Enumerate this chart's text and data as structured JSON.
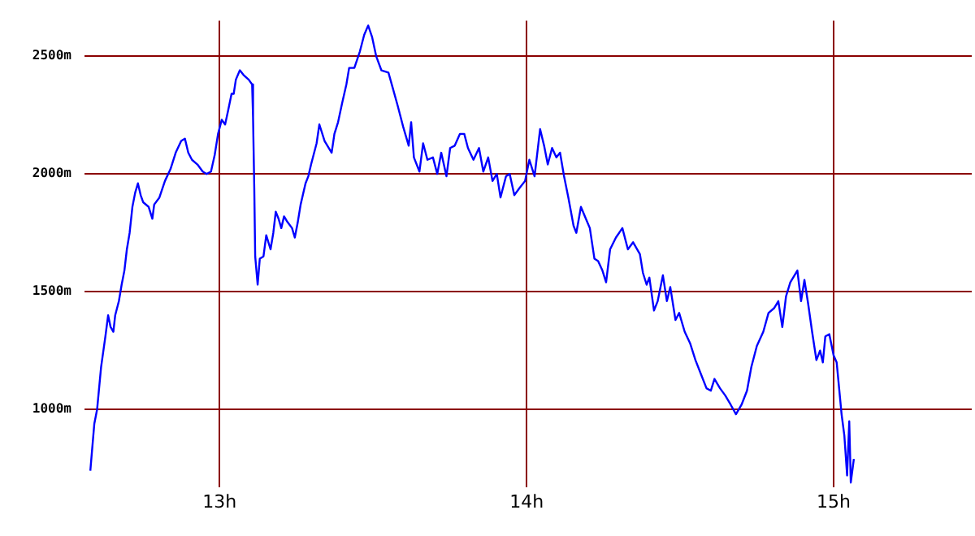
{
  "chart_data": {
    "type": "line",
    "grid": true,
    "marker": "none",
    "line_style": "solid",
    "xlim": [
      12.56,
      15.45
    ],
    "ylim": [
      670,
      2650
    ],
    "xticks": [
      {
        "value": 13,
        "label": "13h"
      },
      {
        "value": 14,
        "label": "14h"
      },
      {
        "value": 15,
        "label": "15h"
      }
    ],
    "yticks": [
      {
        "value": 1000,
        "label": "1000m"
      },
      {
        "value": 1500,
        "label": "1500m"
      },
      {
        "value": 2000,
        "label": "2000m"
      },
      {
        "value": 2500,
        "label": "2500m"
      }
    ],
    "series": [
      {
        "color": "#0000ff",
        "x": [
          12.579,
          12.592,
          12.601,
          12.614,
          12.628,
          12.637,
          12.645,
          12.654,
          12.66,
          12.672,
          12.681,
          12.69,
          12.698,
          12.707,
          12.716,
          12.725,
          12.734,
          12.743,
          12.751,
          12.769,
          12.781,
          12.787,
          12.804,
          12.822,
          12.84,
          12.857,
          12.875,
          12.887,
          12.898,
          12.91,
          12.928,
          12.945,
          12.958,
          12.972,
          12.984,
          12.995,
          13.007,
          13.018,
          13.028,
          13.039,
          13.046,
          13.053,
          13.066,
          13.078,
          13.095,
          13.106,
          13.109,
          13.113,
          13.116,
          13.124,
          13.131,
          13.143,
          13.152,
          13.166,
          13.175,
          13.183,
          13.192,
          13.201,
          13.21,
          13.219,
          13.236,
          13.245,
          13.254,
          13.264,
          13.28,
          13.289,
          13.298,
          13.316,
          13.325,
          13.342,
          13.365,
          13.374,
          13.386,
          13.399,
          13.413,
          13.422,
          13.439,
          13.457,
          13.471,
          13.484,
          13.497,
          13.51,
          13.527,
          13.55,
          13.563,
          13.58,
          13.598,
          13.616,
          13.624,
          13.633,
          13.651,
          13.663,
          13.677,
          13.695,
          13.709,
          13.722,
          13.739,
          13.751,
          13.766,
          13.783,
          13.797,
          13.809,
          13.827,
          13.845,
          13.859,
          13.875,
          13.889,
          13.903,
          13.915,
          13.933,
          13.945,
          13.96,
          13.977,
          13.995,
          14.009,
          14.026,
          14.044,
          14.057,
          14.069,
          14.083,
          14.097,
          14.109,
          14.122,
          14.136,
          14.153,
          14.162,
          14.177,
          14.193,
          14.206,
          14.221,
          14.233,
          14.247,
          14.259,
          14.272,
          14.291,
          14.312,
          14.33,
          14.347,
          14.369,
          14.379,
          14.391,
          14.4,
          14.415,
          14.427,
          14.444,
          14.457,
          14.468,
          14.485,
          14.497,
          14.515,
          14.533,
          14.55,
          14.568,
          14.586,
          14.6,
          14.612,
          14.63,
          14.647,
          14.665,
          14.682,
          14.7,
          14.718,
          14.732,
          14.75,
          14.771,
          14.788,
          14.806,
          14.82,
          14.833,
          14.845,
          14.859,
          14.873,
          14.882,
          14.894,
          14.905,
          14.917,
          14.93,
          14.944,
          14.956,
          14.965,
          14.973,
          14.986,
          15.0,
          15.01,
          15.018,
          15.026,
          15.035,
          15.044,
          15.051,
          15.056,
          15.066
        ],
        "values": [
          740,
          940,
          1000,
          1180,
          1310,
          1400,
          1350,
          1330,
          1400,
          1460,
          1530,
          1590,
          1680,
          1750,
          1860,
          1920,
          1960,
          1910,
          1880,
          1860,
          1810,
          1870,
          1900,
          1970,
          2020,
          2090,
          2140,
          2150,
          2090,
          2060,
          2040,
          2010,
          2000,
          2010,
          2080,
          2170,
          2230,
          2210,
          2270,
          2340,
          2340,
          2400,
          2440,
          2420,
          2400,
          2380,
          2240,
          1940,
          1650,
          1530,
          1640,
          1650,
          1740,
          1680,
          1750,
          1840,
          1810,
          1770,
          1820,
          1800,
          1770,
          1730,
          1790,
          1870,
          1960,
          1990,
          2040,
          2130,
          2210,
          2140,
          2090,
          2170,
          2220,
          2300,
          2380,
          2450,
          2450,
          2520,
          2590,
          2630,
          2580,
          2500,
          2440,
          2430,
          2370,
          2290,
          2200,
          2120,
          2220,
          2070,
          2010,
          2130,
          2060,
          2070,
          2000,
          2090,
          1990,
          2110,
          2120,
          2170,
          2170,
          2110,
          2060,
          2110,
          2010,
          2070,
          1970,
          2000,
          1900,
          1990,
          2000,
          1910,
          1940,
          1970,
          2060,
          1990,
          2190,
          2120,
          2040,
          2110,
          2070,
          2090,
          1990,
          1900,
          1780,
          1750,
          1860,
          1810,
          1770,
          1640,
          1630,
          1590,
          1540,
          1680,
          1730,
          1770,
          1680,
          1710,
          1660,
          1580,
          1530,
          1560,
          1420,
          1460,
          1570,
          1460,
          1520,
          1380,
          1410,
          1330,
          1280,
          1210,
          1150,
          1090,
          1080,
          1130,
          1090,
          1060,
          1020,
          980,
          1020,
          1080,
          1180,
          1270,
          1330,
          1410,
          1430,
          1460,
          1350,
          1480,
          1540,
          1570,
          1590,
          1460,
          1550,
          1450,
          1330,
          1210,
          1250,
          1200,
          1310,
          1320,
          1230,
          1200,
          1090,
          980,
          890,
          720,
          950,
          690,
          790
        ]
      }
    ]
  }
}
